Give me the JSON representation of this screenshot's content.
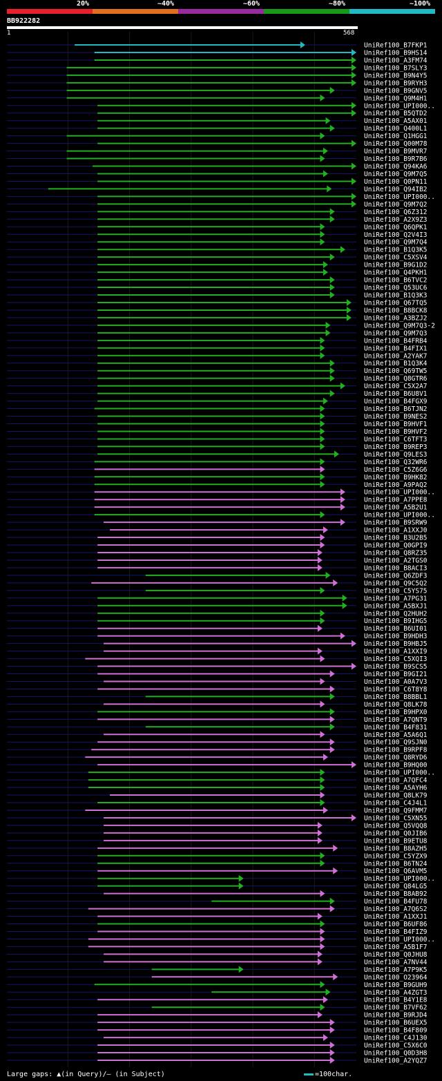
{
  "chart_data": {
    "type": "alignment",
    "query": {
      "id": "BB922282",
      "start": 1,
      "end": 568
    },
    "identity_legend": [
      {
        "label": "20%",
        "color": "#e8202c"
      },
      {
        "label": "~40%",
        "color": "#e0701e"
      },
      {
        "label": "~60%",
        "color": "#9a2aa0"
      },
      {
        "label": "~80%",
        "color": "#189a18"
      },
      {
        "label": "~100%",
        "color": "#1fbac6"
      }
    ],
    "hits": [
      {
        "name": "UniRef100_B7FKP1",
        "identity": "~100%",
        "q_start": 111,
        "q_end": 485
      },
      {
        "name": "UniRef100_B9HS14",
        "identity": "~100%",
        "q_start": 143,
        "q_end": 568
      },
      {
        "name": "UniRef100_A3FM74",
        "identity": "~80%",
        "q_start": 143,
        "q_end": 568
      },
      {
        "name": "UniRef100_B7SLY3",
        "identity": "~80%",
        "q_start": 98,
        "q_end": 568
      },
      {
        "name": "UniRef100_B9N4Y5",
        "identity": "~80%",
        "q_start": 98,
        "q_end": 568
      },
      {
        "name": "UniRef100_B9RYH3",
        "identity": "~80%",
        "q_start": 98,
        "q_end": 568
      },
      {
        "name": "UniRef100_B9GNV5",
        "identity": "~80%",
        "q_start": 98,
        "q_end": 533
      },
      {
        "name": "UniRef100_Q9M4H1",
        "identity": "~80%",
        "q_start": 98,
        "q_end": 517
      },
      {
        "name": "UniRef100_UPI000..",
        "identity": "~80%",
        "q_start": 148,
        "q_end": 568
      },
      {
        "name": "UniRef100_B5QTD2",
        "identity": "~80%",
        "q_start": 148,
        "q_end": 568
      },
      {
        "name": "UniRef100_A5AX01",
        "identity": "~80%",
        "q_start": 148,
        "q_end": 526
      },
      {
        "name": "UniRef100_Q400L1",
        "identity": "~80%",
        "q_start": 148,
        "q_end": 533
      },
      {
        "name": "UniRef100_Q1HGG1",
        "identity": "~80%",
        "q_start": 98,
        "q_end": 517
      },
      {
        "name": "UniRef100_Q00M78",
        "identity": "~80%",
        "q_start": 148,
        "q_end": 568
      },
      {
        "name": "UniRef100_B9MVR7",
        "identity": "~80%",
        "q_start": 98,
        "q_end": 522
      },
      {
        "name": "UniRef100_B9R7B6",
        "identity": "~80%",
        "q_start": 98,
        "q_end": 517
      },
      {
        "name": "UniRef100_Q94KA6",
        "identity": "~80%",
        "q_start": 140,
        "q_end": 568
      },
      {
        "name": "UniRef100_Q9M7Q5",
        "identity": "~80%",
        "q_start": 148,
        "q_end": 522
      },
      {
        "name": "UniRef100_Q0PN11",
        "identity": "~80%",
        "q_start": 148,
        "q_end": 568
      },
      {
        "name": "UniRef100_Q94IB2",
        "identity": "~80%",
        "q_start": 68,
        "q_end": 528
      },
      {
        "name": "UniRef100_UPI000..",
        "identity": "~80%",
        "q_start": 148,
        "q_end": 568
      },
      {
        "name": "UniRef100_Q9M7Q2",
        "identity": "~80%",
        "q_start": 148,
        "q_end": 568
      },
      {
        "name": "UniRef100_Q6Z312",
        "identity": "~80%",
        "q_start": 148,
        "q_end": 533
      },
      {
        "name": "UniRef100_A2X9Z3",
        "identity": "~80%",
        "q_start": 148,
        "q_end": 533
      },
      {
        "name": "UniRef100_Q6QPK1",
        "identity": "~80%",
        "q_start": 148,
        "q_end": 517
      },
      {
        "name": "UniRef100_Q2V4I3",
        "identity": "~80%",
        "q_start": 148,
        "q_end": 517
      },
      {
        "name": "UniRef100_Q9M7Q4",
        "identity": "~80%",
        "q_start": 148,
        "q_end": 517
      },
      {
        "name": "UniRef100_B1Q3K5",
        "identity": "~80%",
        "q_start": 148,
        "q_end": 550
      },
      {
        "name": "UniRef100_C5XSV4",
        "identity": "~80%",
        "q_start": 148,
        "q_end": 533
      },
      {
        "name": "UniRef100_B9G1D2",
        "identity": "~80%",
        "q_start": 148,
        "q_end": 522
      },
      {
        "name": "UniRef100_Q4PKH1",
        "identity": "~80%",
        "q_start": 148,
        "q_end": 522
      },
      {
        "name": "UniRef100_B6TVC2",
        "identity": "~80%",
        "q_start": 148,
        "q_end": 533
      },
      {
        "name": "UniRef100_Q53UC6",
        "identity": "~80%",
        "q_start": 148,
        "q_end": 533
      },
      {
        "name": "UniRef100_B1Q3K3",
        "identity": "~80%",
        "q_start": 148,
        "q_end": 533
      },
      {
        "name": "UniRef100_Q67TQ5",
        "identity": "~80%",
        "q_start": 148,
        "q_end": 560
      },
      {
        "name": "UniRef100_B8BCK8",
        "identity": "~80%",
        "q_start": 148,
        "q_end": 560
      },
      {
        "name": "UniRef100_A3BZJ2",
        "identity": "~80%",
        "q_start": 148,
        "q_end": 560
      },
      {
        "name": "UniRef100_Q9M7Q3-2",
        "identity": "~80%",
        "q_start": 148,
        "q_end": 526
      },
      {
        "name": "UniRef100_Q9M7Q3",
        "identity": "~80%",
        "q_start": 148,
        "q_end": 526
      },
      {
        "name": "UniRef100_B4FRB4",
        "identity": "~80%",
        "q_start": 148,
        "q_end": 517
      },
      {
        "name": "UniRef100_B4FIX1",
        "identity": "~80%",
        "q_start": 148,
        "q_end": 517
      },
      {
        "name": "UniRef100_A2YAK7",
        "identity": "~80%",
        "q_start": 148,
        "q_end": 517
      },
      {
        "name": "UniRef100_B1Q3K4",
        "identity": "~80%",
        "q_start": 148,
        "q_end": 533
      },
      {
        "name": "UniRef100_Q69TW5",
        "identity": "~80%",
        "q_start": 148,
        "q_end": 533
      },
      {
        "name": "UniRef100_Q8GTR6",
        "identity": "~80%",
        "q_start": 148,
        "q_end": 533
      },
      {
        "name": "UniRef100_C5X2A7",
        "identity": "~80%",
        "q_start": 148,
        "q_end": 550
      },
      {
        "name": "UniRef100_B6U8V1",
        "identity": "~80%",
        "q_start": 148,
        "q_end": 533
      },
      {
        "name": "UniRef100_B4FGX9",
        "identity": "~80%",
        "q_start": 148,
        "q_end": 522
      },
      {
        "name": "UniRef100_B6TJN2",
        "identity": "~80%",
        "q_start": 143,
        "q_end": 517
      },
      {
        "name": "UniRef100_B9NES2",
        "identity": "~80%",
        "q_start": 148,
        "q_end": 517
      },
      {
        "name": "UniRef100_B9HVF1",
        "identity": "~80%",
        "q_start": 148,
        "q_end": 517
      },
      {
        "name": "UniRef100_B9HVF2",
        "identity": "~80%",
        "q_start": 148,
        "q_end": 517
      },
      {
        "name": "UniRef100_C6TFT3",
        "identity": "~80%",
        "q_start": 148,
        "q_end": 517
      },
      {
        "name": "UniRef100_B9REP3",
        "identity": "~80%",
        "q_start": 148,
        "q_end": 517
      },
      {
        "name": "UniRef100_Q9LES3",
        "identity": "~80%",
        "q_start": 148,
        "q_end": 540
      },
      {
        "name": "UniRef100_Q32WR6",
        "identity": "~80%",
        "q_start": 143,
        "q_end": 517
      },
      {
        "name": "UniRef100_C5Z6G6",
        "identity": "~60%",
        "q_start": 143,
        "q_end": 517
      },
      {
        "name": "UniRef100_B9HK82",
        "identity": "~80%",
        "q_start": 143,
        "q_end": 517
      },
      {
        "name": "UniRef100_A9PAQ2",
        "identity": "~80%",
        "q_start": 143,
        "q_end": 517
      },
      {
        "name": "UniRef100_UPI000..",
        "identity": "~60%",
        "q_start": 143,
        "q_end": 550
      },
      {
        "name": "UniRef100_A7PPE8",
        "identity": "~60%",
        "q_start": 143,
        "q_end": 550
      },
      {
        "name": "UniRef100_A5B2U1",
        "identity": "~60%",
        "q_start": 143,
        "q_end": 550
      },
      {
        "name": "UniRef100_UPI000..",
        "identity": "~80%",
        "q_start": 143,
        "q_end": 517
      },
      {
        "name": "UniRef100_B9SRW9",
        "identity": "~60%",
        "q_start": 158,
        "q_end": 550
      },
      {
        "name": "UniRef100_A1XXJ0",
        "identity": "~60%",
        "q_start": 168,
        "q_end": 522
      },
      {
        "name": "UniRef100_B3U2B5",
        "identity": "~60%",
        "q_start": 148,
        "q_end": 517
      },
      {
        "name": "UniRef100_Q0GPI9",
        "identity": "~60%",
        "q_start": 148,
        "q_end": 517
      },
      {
        "name": "UniRef100_Q8RZ35",
        "identity": "~60%",
        "q_start": 148,
        "q_end": 513
      },
      {
        "name": "UniRef100_A2TGS0",
        "identity": "~60%",
        "q_start": 148,
        "q_end": 513
      },
      {
        "name": "UniRef100_B8ACI3",
        "identity": "~60%",
        "q_start": 148,
        "q_end": 513
      },
      {
        "name": "UniRef100_Q6ZDF3",
        "identity": "~80%",
        "q_start": 226,
        "q_end": 526
      },
      {
        "name": "UniRef100_Q9C5Q2",
        "identity": "~60%",
        "q_start": 138,
        "q_end": 538
      },
      {
        "name": "UniRef100_C5YS75",
        "identity": "~80%",
        "q_start": 226,
        "q_end": 517
      },
      {
        "name": "UniRef100_A7PG31",
        "identity": "~80%",
        "q_start": 148,
        "q_end": 553
      },
      {
        "name": "UniRef100_A5BXJ1",
        "identity": "~80%",
        "q_start": 148,
        "q_end": 553
      },
      {
        "name": "UniRef100_Q2HUH2",
        "identity": "~80%",
        "q_start": 148,
        "q_end": 517
      },
      {
        "name": "UniRef100_B9IHG5",
        "identity": "~80%",
        "q_start": 148,
        "q_end": 517
      },
      {
        "name": "UniRef100_B6UI01",
        "identity": "~60%",
        "q_start": 148,
        "q_end": 513
      },
      {
        "name": "UniRef100_B9HDH3",
        "identity": "~60%",
        "q_start": 148,
        "q_end": 550
      },
      {
        "name": "UniRef100_B9HBJ5",
        "identity": "~60%",
        "q_start": 158,
        "q_end": 568
      },
      {
        "name": "UniRef100_A1XXI9",
        "identity": "~60%",
        "q_start": 158,
        "q_end": 513
      },
      {
        "name": "UniRef100_C5XQI3",
        "identity": "~60%",
        "q_start": 128,
        "q_end": 517
      },
      {
        "name": "UniRef100_B9SCS5",
        "identity": "~60%",
        "q_start": 148,
        "q_end": 568
      },
      {
        "name": "UniRef100_B9GI21",
        "identity": "~60%",
        "q_start": 148,
        "q_end": 533
      },
      {
        "name": "UniRef100_A0A7V3",
        "identity": "~60%",
        "q_start": 158,
        "q_end": 517
      },
      {
        "name": "UniRef100_C6T8Y8",
        "identity": "~60%",
        "q_start": 148,
        "q_end": 533
      },
      {
        "name": "UniRef100_B8BBL1",
        "identity": "~80%",
        "q_start": 226,
        "q_end": 533
      },
      {
        "name": "UniRef100_Q8LK78",
        "identity": "~60%",
        "q_start": 158,
        "q_end": 517
      },
      {
        "name": "UniRef100_B9HPX0",
        "identity": "~80%",
        "q_start": 148,
        "q_end": 533
      },
      {
        "name": "UniRef100_A7QNT9",
        "identity": "~60%",
        "q_start": 148,
        "q_end": 533
      },
      {
        "name": "UniRef100_B4F831",
        "identity": "~80%",
        "q_start": 226,
        "q_end": 533
      },
      {
        "name": "UniRef100_A5A6Q1",
        "identity": "~60%",
        "q_start": 158,
        "q_end": 517
      },
      {
        "name": "UniRef100_Q9SJN0",
        "identity": "~60%",
        "q_start": 148,
        "q_end": 533
      },
      {
        "name": "UniRef100_B9RPF8",
        "identity": "~60%",
        "q_start": 138,
        "q_end": 533
      },
      {
        "name": "UniRef100_Q8RYD6",
        "identity": "~60%",
        "q_start": 128,
        "q_end": 522
      },
      {
        "name": "UniRef100_B9HQ00",
        "identity": "~60%",
        "q_start": 148,
        "q_end": 568
      },
      {
        "name": "UniRef100_UPI000..",
        "identity": "~80%",
        "q_start": 133,
        "q_end": 517
      },
      {
        "name": "UniRef100_A7QFC4",
        "identity": "~80%",
        "q_start": 133,
        "q_end": 517
      },
      {
        "name": "UniRef100_A5AYH6",
        "identity": "~80%",
        "q_start": 133,
        "q_end": 517
      },
      {
        "name": "UniRef100_Q8LK79",
        "identity": "~60%",
        "q_start": 168,
        "q_end": 517
      },
      {
        "name": "UniRef100_C4J4L1",
        "identity": "~80%",
        "q_start": 148,
        "q_end": 517
      },
      {
        "name": "UniRef100_Q9FMM7",
        "identity": "~60%",
        "q_start": 128,
        "q_end": 522
      },
      {
        "name": "UniRef100_C5XN55",
        "identity": "~60%",
        "q_start": 158,
        "q_end": 568
      },
      {
        "name": "UniRef100_Q5VQQ8",
        "identity": "~60%",
        "q_start": 158,
        "q_end": 513
      },
      {
        "name": "UniRef100_Q0JIB6",
        "identity": "~60%",
        "q_start": 158,
        "q_end": 513
      },
      {
        "name": "UniRef100_B9ETU8",
        "identity": "~60%",
        "q_start": 158,
        "q_end": 513
      },
      {
        "name": "UniRef100_B8AZH5",
        "identity": "~60%",
        "q_start": 148,
        "q_end": 538
      },
      {
        "name": "UniRef100_C5YZX9",
        "identity": "~80%",
        "q_start": 148,
        "q_end": 517
      },
      {
        "name": "UniRef100_B6TN24",
        "identity": "~80%",
        "q_start": 148,
        "q_end": 517
      },
      {
        "name": "UniRef100_Q6AVM5",
        "identity": "~60%",
        "q_start": 148,
        "q_end": 538
      },
      {
        "name": "UniRef100_UPI000..",
        "identity": "~80%",
        "q_start": 148,
        "q_end": 385
      },
      {
        "name": "UniRef100_Q84LG5",
        "identity": "~80%",
        "q_start": 148,
        "q_end": 385
      },
      {
        "name": "UniRef100_B8AB92",
        "identity": "~60%",
        "q_start": 158,
        "q_end": 517
      },
      {
        "name": "UniRef100_B4FU78",
        "identity": "~80%",
        "q_start": 333,
        "q_end": 533
      },
      {
        "name": "UniRef100_A7Q6S2",
        "identity": "~60%",
        "q_start": 133,
        "q_end": 533
      },
      {
        "name": "UniRef100_A1XXJ1",
        "identity": "~60%",
        "q_start": 148,
        "q_end": 513
      },
      {
        "name": "UniRef100_B6UF86",
        "identity": "~80%",
        "q_start": 148,
        "q_end": 517
      },
      {
        "name": "UniRef100_B4FIZ9",
        "identity": "~60%",
        "q_start": 148,
        "q_end": 517
      },
      {
        "name": "UniRef100_UPI000..",
        "identity": "~60%",
        "q_start": 133,
        "q_end": 517
      },
      {
        "name": "UniRef100_A5B1F7",
        "identity": "~60%",
        "q_start": 133,
        "q_end": 517
      },
      {
        "name": "UniRef100_Q0JHU8",
        "identity": "~60%",
        "q_start": 158,
        "q_end": 513
      },
      {
        "name": "UniRef100_A7NV44",
        "identity": "~60%",
        "q_start": 158,
        "q_end": 513
      },
      {
        "name": "UniRef100_A7P9K5",
        "identity": "~80%",
        "q_start": 236,
        "q_end": 385
      },
      {
        "name": "UniRef100_O23964",
        "identity": "~60%",
        "q_start": 236,
        "q_end": 538
      },
      {
        "name": "UniRef100_B9GUH9",
        "identity": "~80%",
        "q_start": 143,
        "q_end": 517
      },
      {
        "name": "UniRef100_A4ZGT3",
        "identity": "~80%",
        "q_start": 333,
        "q_end": 526
      },
      {
        "name": "UniRef100_B4Y1E8",
        "identity": "~60%",
        "q_start": 148,
        "q_end": 522
      },
      {
        "name": "UniRef100_B7VF62",
        "identity": "~80%",
        "q_start": 236,
        "q_end": 517
      },
      {
        "name": "UniRef100_B9RJD4",
        "identity": "~60%",
        "q_start": 148,
        "q_end": 513
      },
      {
        "name": "UniRef100_B6UEX5",
        "identity": "~60%",
        "q_start": 148,
        "q_end": 533
      },
      {
        "name": "UniRef100_B4F809",
        "identity": "~60%",
        "q_start": 148,
        "q_end": 533
      },
      {
        "name": "UniRef100_C4J130",
        "identity": "~60%",
        "q_start": 158,
        "q_end": 522
      },
      {
        "name": "UniRef100_C5X6C0",
        "identity": "~60%",
        "q_start": 148,
        "q_end": 533
      },
      {
        "name": "UniRef100_Q0D3H8",
        "identity": "~60%",
        "q_start": 148,
        "q_end": 533
      },
      {
        "name": "UniRef100_A2YQZ7",
        "identity": "~60%",
        "q_start": 148,
        "q_end": 533
      }
    ]
  },
  "footer": {
    "gaps_text": "Large gaps: ▲(in Query)/– (in Subject)",
    "scale_text": "=100char."
  }
}
